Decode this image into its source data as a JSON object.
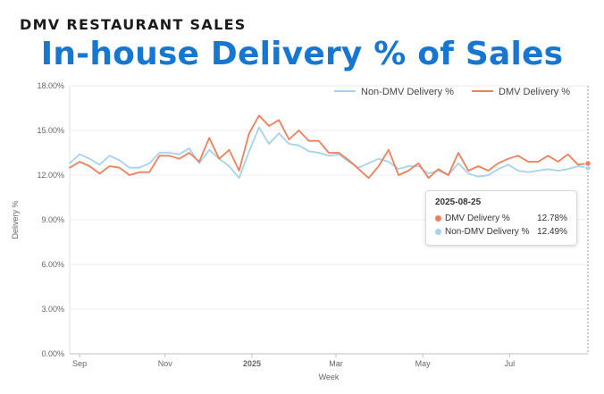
{
  "header": {
    "kicker": "DMV RESTAURANT SALES",
    "title": "In-house Delivery % of Sales"
  },
  "colors": {
    "dmv": "#f07f5c",
    "non_dmv": "#a6d2ea",
    "title": "#1677d2"
  },
  "chart_data": {
    "type": "line",
    "xlabel": "Week",
    "ylabel": "Delivery %",
    "ylim": [
      0,
      18
    ],
    "y_ticks": [
      "0.00%",
      "3.00%",
      "6.00%",
      "9.00%",
      "12.00%",
      "15.00%",
      "18.00%"
    ],
    "x_ticks": [
      {
        "label": "Sep",
        "date": "2024-09-02"
      },
      {
        "label": "Nov",
        "date": "2024-11-01"
      },
      {
        "label": "2025",
        "date": "2025-01-01"
      },
      {
        "label": "Mar",
        "date": "2025-03-01"
      },
      {
        "label": "May",
        "date": "2025-05-01"
      },
      {
        "label": "Jul",
        "date": "2025-07-01"
      }
    ],
    "grid": true,
    "legend": "top-right",
    "x": [
      "2024-08-26",
      "2024-09-02",
      "2024-09-09",
      "2024-09-16",
      "2024-09-23",
      "2024-09-30",
      "2024-10-07",
      "2024-10-14",
      "2024-10-21",
      "2024-10-28",
      "2024-11-04",
      "2024-11-11",
      "2024-11-18",
      "2024-11-25",
      "2024-12-02",
      "2024-12-09",
      "2024-12-16",
      "2024-12-23",
      "2024-12-30",
      "2025-01-06",
      "2025-01-13",
      "2025-01-20",
      "2025-01-27",
      "2025-02-03",
      "2025-02-10",
      "2025-02-17",
      "2025-02-24",
      "2025-03-03",
      "2025-03-10",
      "2025-03-17",
      "2025-03-24",
      "2025-03-31",
      "2025-04-07",
      "2025-04-14",
      "2025-04-21",
      "2025-04-28",
      "2025-05-05",
      "2025-05-12",
      "2025-05-19",
      "2025-05-26",
      "2025-06-02",
      "2025-06-09",
      "2025-06-16",
      "2025-06-23",
      "2025-06-30",
      "2025-07-07",
      "2025-07-14",
      "2025-07-21",
      "2025-07-28",
      "2025-08-04",
      "2025-08-11",
      "2025-08-18",
      "2025-08-25"
    ],
    "series": [
      {
        "name": "Non-DMV Delivery %",
        "color": "#a6d2ea",
        "values": [
          12.8,
          13.4,
          13.1,
          12.7,
          13.3,
          13.0,
          12.5,
          12.5,
          12.8,
          13.5,
          13.5,
          13.4,
          13.8,
          12.8,
          13.7,
          13.1,
          12.6,
          11.8,
          13.6,
          15.2,
          14.1,
          14.8,
          14.1,
          14.0,
          13.6,
          13.5,
          13.3,
          13.4,
          12.9,
          12.5,
          12.8,
          13.1,
          12.9,
          12.4,
          12.6,
          12.6,
          12.1,
          12.3,
          12.0,
          12.8,
          12.1,
          11.9,
          12.0,
          12.4,
          12.7,
          12.3,
          12.2,
          12.3,
          12.4,
          12.3,
          12.4,
          12.6,
          12.49
        ]
      },
      {
        "name": "DMV Delivery %",
        "color": "#f07f5c",
        "values": [
          12.5,
          12.9,
          12.6,
          12.1,
          12.6,
          12.5,
          12.0,
          12.2,
          12.2,
          13.3,
          13.3,
          13.1,
          13.5,
          12.9,
          14.5,
          13.1,
          13.7,
          12.3,
          14.8,
          16.0,
          15.3,
          15.7,
          14.4,
          15.0,
          14.3,
          14.3,
          13.5,
          13.5,
          13.0,
          12.4,
          11.8,
          12.6,
          13.7,
          12.0,
          12.3,
          12.8,
          11.8,
          12.4,
          12.0,
          13.5,
          12.3,
          12.6,
          12.3,
          12.8,
          13.1,
          13.3,
          12.9,
          12.9,
          13.3,
          12.9,
          13.4,
          12.7,
          12.78
        ]
      }
    ],
    "tooltip": {
      "date": "2025-08-25",
      "rows": [
        {
          "name": "DMV Delivery %",
          "value": "12.78%",
          "color": "#f07f5c"
        },
        {
          "name": "Non-DMV Delivery %",
          "value": "12.49%",
          "color": "#a6d2ea"
        }
      ]
    }
  }
}
